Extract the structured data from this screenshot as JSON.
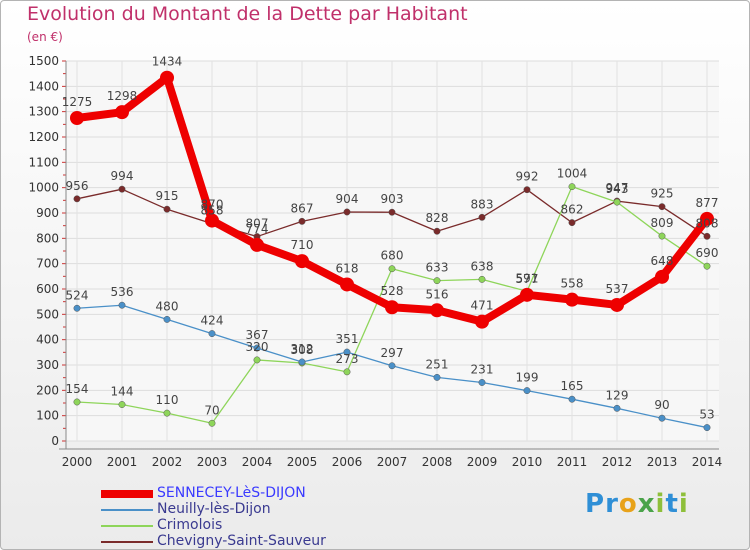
{
  "title": "Evolution du Montant de la Dette par Habitant",
  "unit": "(en €)",
  "logo": "Proxiti",
  "chart_data": {
    "type": "line",
    "x": [
      "2000",
      "2001",
      "2002",
      "2003",
      "2004",
      "2005",
      "2006",
      "2007",
      "2008",
      "2009",
      "2010",
      "2011",
      "2012",
      "2013",
      "2014"
    ],
    "ylim": [
      0,
      1500
    ],
    "yticks": [
      "0",
      "100",
      "200",
      "300",
      "400",
      "500",
      "600",
      "700",
      "800",
      "900",
      "1000",
      "1100",
      "1200",
      "1300",
      "1400",
      "1500"
    ],
    "grid": true,
    "legend_position": "bottom",
    "series": [
      {
        "name": "SENNECEY-LèS-DIJON",
        "color": "#ee0000",
        "values": [
          1275,
          1298,
          1434,
          870,
          774,
          710,
          618,
          528,
          516,
          471,
          577,
          558,
          537,
          648,
          877
        ],
        "labels": [
          "1275",
          "1298",
          "1434",
          "870",
          "774",
          "710",
          "618",
          "528",
          "516",
          "471",
          "577",
          "558",
          "537",
          "648",
          "877"
        ]
      },
      {
        "name": "Neuilly-lès-Dijon",
        "color": "#4a90c8",
        "values": [
          524,
          536,
          480,
          424,
          367,
          312,
          351,
          297,
          251,
          231,
          199,
          165,
          129,
          90,
          53
        ],
        "labels": [
          "524",
          "536",
          "480",
          "424",
          "367",
          "312",
          "351",
          "297",
          "251",
          "231",
          "199",
          "165",
          "129",
          "90",
          "53"
        ]
      },
      {
        "name": "Crimolois",
        "color": "#8ed55a",
        "values": [
          154,
          144,
          110,
          70,
          320,
          308,
          273,
          680,
          633,
          638,
          591,
          1004,
          943,
          809,
          690
        ],
        "labels": [
          "154",
          "144",
          "110",
          "70",
          "320",
          "308",
          "273",
          "680",
          "633",
          "638",
          "591",
          "1004",
          "943",
          "809",
          "690"
        ]
      },
      {
        "name": "Chevigny-Saint-Sauveur",
        "color": "#7a2b2b",
        "values": [
          956,
          994,
          915,
          858,
          807,
          867,
          904,
          903,
          828,
          883,
          992,
          862,
          947,
          925,
          808
        ],
        "labels": [
          "956",
          "994",
          "915",
          "858",
          "807",
          "867",
          "904",
          "903",
          "828",
          "883",
          "992",
          "862",
          "947",
          "925",
          "808"
        ]
      }
    ]
  }
}
